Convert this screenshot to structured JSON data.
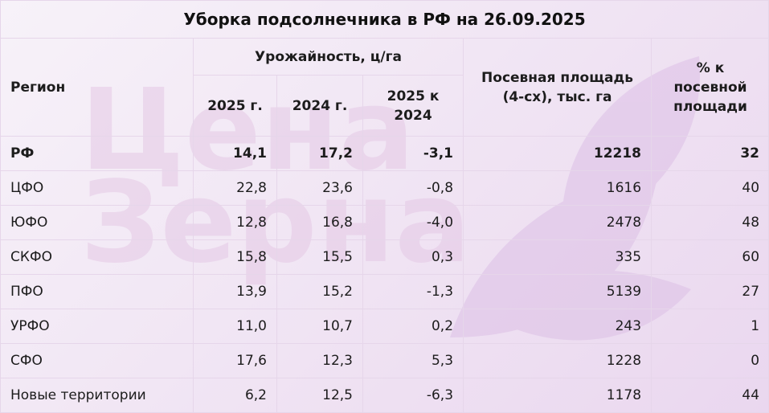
{
  "title": "Уборка подсолнечника в РФ на 26.09.2025",
  "watermark": {
    "line1": "Цена",
    "line2": "Зерна"
  },
  "chart_data": {
    "type": "table",
    "title": "Уборка подсолнечника в РФ на 26.09.2025",
    "header": {
      "region": "Регион",
      "yield_group": "Урожайность, ц/га",
      "y2025": "2025 г.",
      "y2024": "2024 г.",
      "diff": "2025 к 2024",
      "area": "Посевная площадь (4-сх), тыс. га",
      "pct": "% к посевной площади"
    },
    "rows": [
      {
        "region": "РФ",
        "y2025": "14,1",
        "y2024": "17,2",
        "diff": "-3,1",
        "area": "12218",
        "pct": "32",
        "bold": true
      },
      {
        "region": "ЦФО",
        "y2025": "22,8",
        "y2024": "23,6",
        "diff": "-0,8",
        "area": "1616",
        "pct": "40"
      },
      {
        "region": "ЮФО",
        "y2025": "12,8",
        "y2024": "16,8",
        "diff": "-4,0",
        "area": "2478",
        "pct": "48"
      },
      {
        "region": "СКФО",
        "y2025": "15,8",
        "y2024": "15,5",
        "diff": "0,3",
        "area": "335",
        "pct": "60"
      },
      {
        "region": "ПФО",
        "y2025": "13,9",
        "y2024": "15,2",
        "diff": "-1,3",
        "area": "5139",
        "pct": "27"
      },
      {
        "region": "УРФО",
        "y2025": "11,0",
        "y2024": "10,7",
        "diff": "0,2",
        "area": "243",
        "pct": "1"
      },
      {
        "region": "СФО",
        "y2025": "17,6",
        "y2024": "12,3",
        "diff": "5,3",
        "area": "1228",
        "pct": "0"
      },
      {
        "region": "Новые территории",
        "y2025": "6,2",
        "y2024": "12,5",
        "diff": "-6,3",
        "area": "1178",
        "pct": "44"
      }
    ]
  }
}
